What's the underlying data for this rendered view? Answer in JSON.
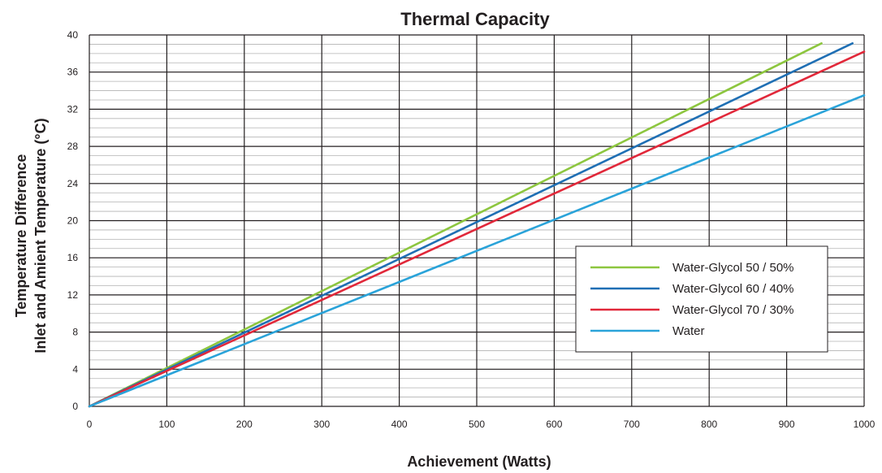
{
  "chart_data": {
    "type": "line",
    "title": "Thermal Capacity",
    "xlabel": "Achievement (Watts)",
    "ylabel_lines": [
      "Temperature Difference",
      "Inlet and Amient Temperature (°C)"
    ],
    "xlim": [
      0,
      1000
    ],
    "ylim": [
      0,
      40
    ],
    "x_ticks": [
      "0",
      "100",
      "200",
      "300",
      "400",
      "500",
      "600",
      "700",
      "800",
      "900",
      "1000"
    ],
    "y_ticks": [
      "0",
      "4",
      "8",
      "12",
      "16",
      "20",
      "24",
      "28",
      "32",
      "36",
      "40"
    ],
    "grid": true,
    "legend_position": "lower-right",
    "series": [
      {
        "name": "Water-Glycol 50 / 50%",
        "color": "#8dc63f",
        "x": [
          0,
          945
        ],
        "y": [
          0,
          39.1
        ]
      },
      {
        "name": "Water-Glycol 60 / 40%",
        "color": "#1f6fb4",
        "x": [
          0,
          985
        ],
        "y": [
          0,
          39.1
        ]
      },
      {
        "name": "Water-Glycol 70 / 30%",
        "color": "#e1283a",
        "x": [
          0,
          1000
        ],
        "y": [
          0,
          38.2
        ]
      },
      {
        "name": "Water",
        "color": "#2aa3d9",
        "x": [
          0,
          1000
        ],
        "y": [
          0,
          33.5
        ]
      }
    ]
  }
}
